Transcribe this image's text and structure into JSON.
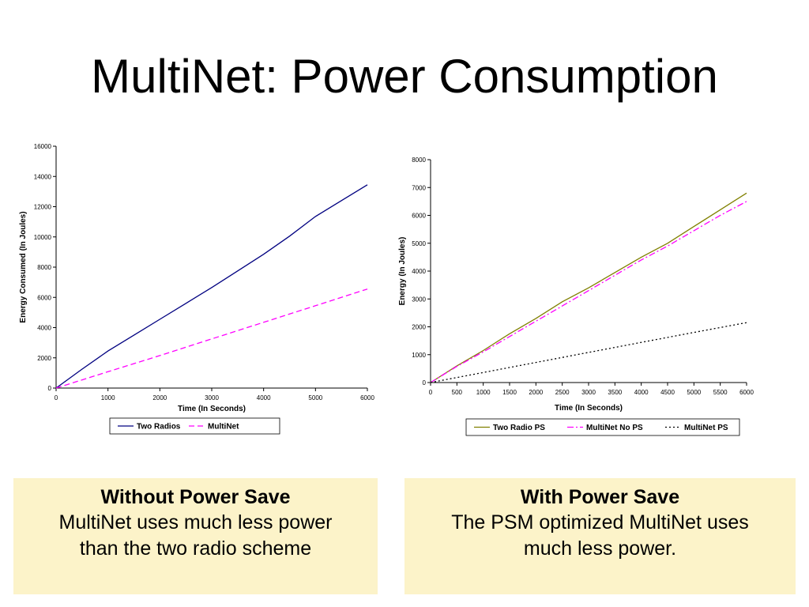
{
  "slide": {
    "title": "MultiNet: Power Consumption"
  },
  "chart_data": [
    {
      "type": "line",
      "title": "",
      "xlabel": "Time (In Seconds)",
      "ylabel": "Energy Consumed (In Joules)",
      "xlim": [
        0,
        6000
      ],
      "ylim": [
        0,
        16000
      ],
      "xticks": [
        "0",
        "1000",
        "2000",
        "3000",
        "4000",
        "5000",
        "6000"
      ],
      "yticks": [
        "0",
        "2000",
        "4000",
        "6000",
        "8000",
        "10000",
        "12000",
        "14000",
        "16000"
      ],
      "grid": false,
      "legend_position": "bottom",
      "series": [
        {
          "name": "Two Radios",
          "color": "#000080",
          "dash": "solid",
          "x": [
            0,
            500,
            1000,
            1500,
            2000,
            2500,
            3000,
            3500,
            4000,
            4500,
            5000,
            5500,
            6000
          ],
          "y": [
            0,
            1250,
            2450,
            3500,
            4550,
            5600,
            6650,
            7750,
            8850,
            10050,
            11350,
            12400,
            13450
          ]
        },
        {
          "name": "MultiNet",
          "color": "#ff00ff",
          "dash": "dash",
          "x": [
            0,
            1000,
            2000,
            3000,
            4000,
            5000,
            6000
          ],
          "y": [
            0,
            1080,
            2150,
            3250,
            4350,
            5450,
            6550
          ]
        }
      ]
    },
    {
      "type": "line",
      "title": "",
      "xlabel": "Time (In Seconds)",
      "ylabel": "Energy (In Joules)",
      "xlim": [
        0,
        6000
      ],
      "ylim": [
        0,
        8000
      ],
      "xticks": [
        "0",
        "500",
        "1000",
        "1500",
        "2000",
        "2500",
        "3000",
        "3500",
        "4000",
        "4500",
        "5000",
        "5500",
        "6000"
      ],
      "yticks": [
        "0",
        "1000",
        "2000",
        "3000",
        "4000",
        "5000",
        "6000",
        "7000",
        "8000"
      ],
      "grid": false,
      "legend_position": "bottom",
      "series": [
        {
          "name": "Two Radio PS",
          "color": "#808000",
          "dash": "solid",
          "x": [
            0,
            500,
            1000,
            1500,
            2000,
            2500,
            3000,
            3500,
            4000,
            4500,
            5000,
            5500,
            6000
          ],
          "y": [
            0,
            600,
            1150,
            1750,
            2300,
            2900,
            3400,
            3950,
            4500,
            5000,
            5600,
            6200,
            6800
          ]
        },
        {
          "name": "MultiNet No PS",
          "color": "#ff00ff",
          "dash": "dashdot",
          "x": [
            0,
            500,
            1000,
            1500,
            2000,
            2500,
            3000,
            3500,
            4000,
            4500,
            5000,
            5500,
            6000
          ],
          "y": [
            0,
            580,
            1100,
            1650,
            2200,
            2750,
            3300,
            3850,
            4400,
            4900,
            5450,
            6000,
            6500
          ]
        },
        {
          "name": "MultiNet PS",
          "color": "#000000",
          "dash": "dot",
          "x": [
            0,
            1000,
            2000,
            3000,
            4000,
            5000,
            6000
          ],
          "y": [
            0,
            360,
            720,
            1080,
            1440,
            1800,
            2150
          ]
        }
      ]
    }
  ],
  "notes": [
    {
      "heading": "Without Power Save",
      "line1": "MultiNet uses much less power",
      "line2": "than the two radio scheme"
    },
    {
      "heading": "With Power Save",
      "line1": "The PSM optimized MultiNet uses",
      "line2": "much less power."
    }
  ]
}
